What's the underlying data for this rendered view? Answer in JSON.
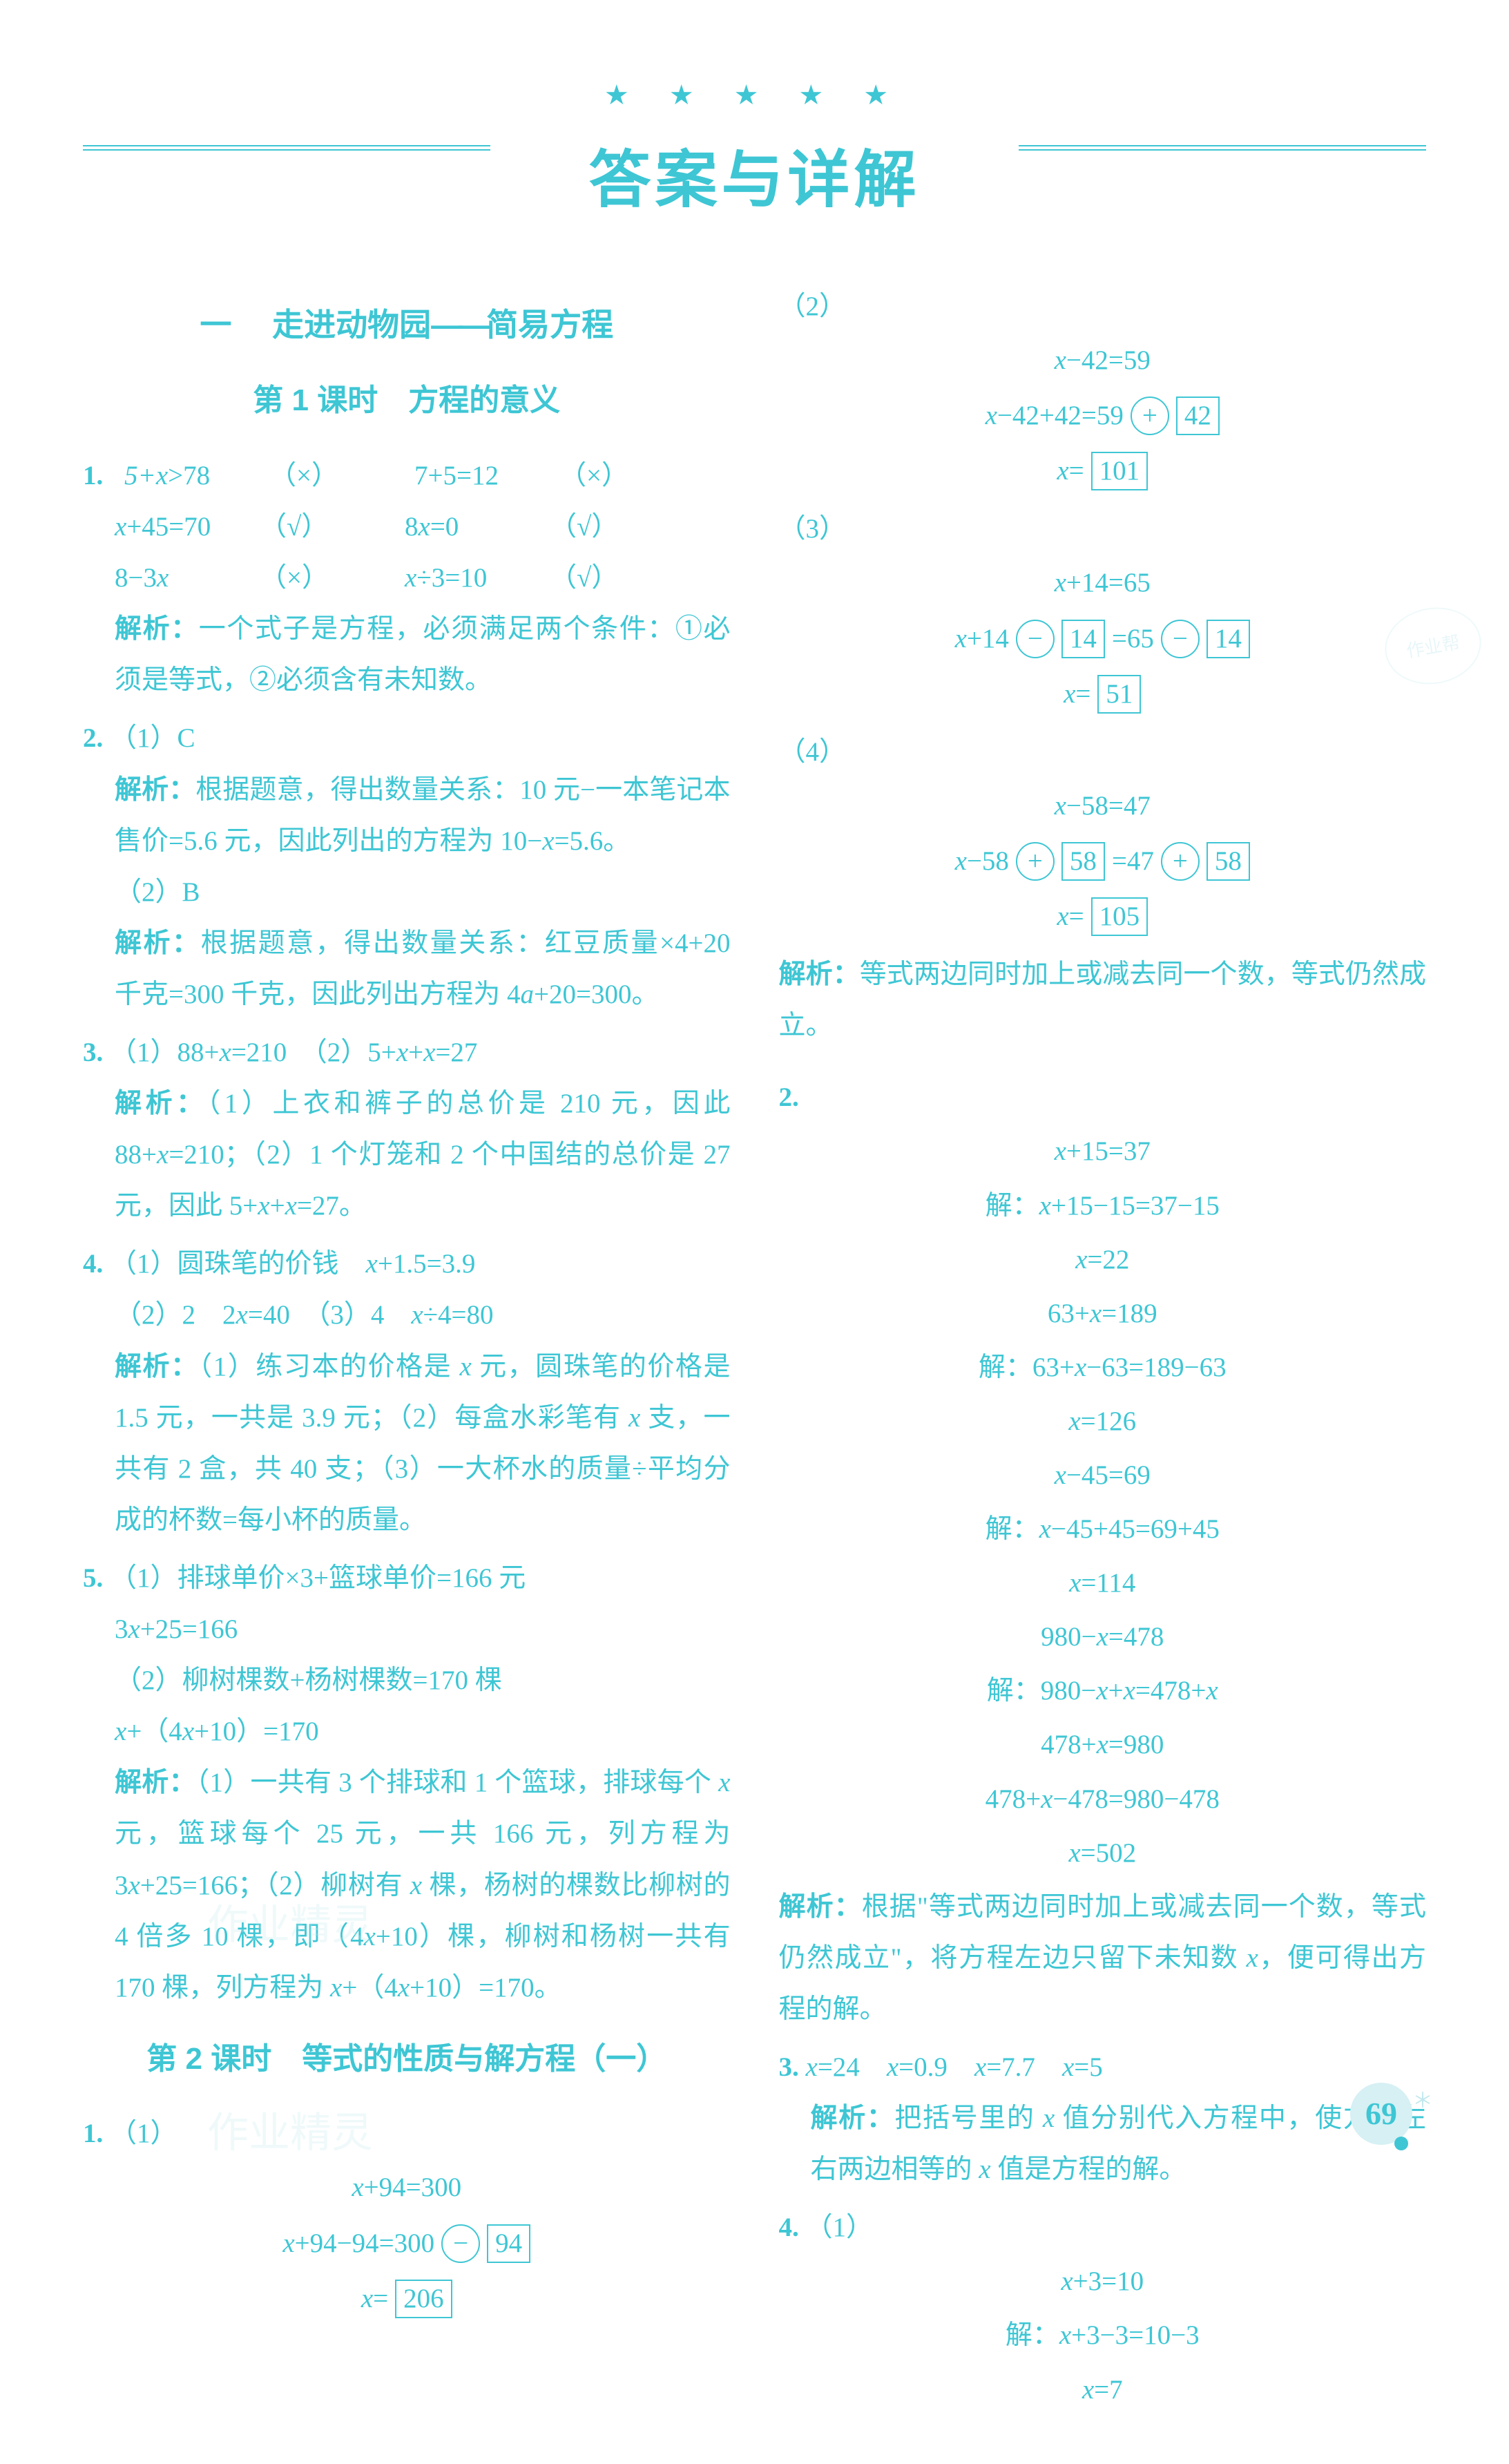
{
  "header": {
    "stars": "★ ★ ★ ★ ★",
    "title": "答案与详解"
  },
  "left": {
    "chapter": {
      "pre": "一",
      "mid": "走进动物园",
      "dash": "——",
      "post": "简易方程"
    },
    "lesson1_title": "第 1 课时　方程的意义",
    "q1": {
      "num": "1.",
      "r1": {
        "a": "5+x>78",
        "am": "（×）",
        "b": "7+5=12",
        "bm": "（×）"
      },
      "r2": {
        "a": "x+45=70",
        "am": "（√）",
        "b": "8x=0",
        "bm": "（√）"
      },
      "r3": {
        "a": "8−3x",
        "am": "（×）",
        "b": "x÷3=10",
        "bm": "（√）"
      },
      "analysis": "解析：一个式子是方程，必须满足两个条件：①必须是等式，②必须含有未知数。"
    },
    "q2": {
      "num": "2.",
      "p1": "（1）C",
      "p1_analysis": "解析：根据题意，得出数量关系：10 元−一本笔记本售价=5.6 元，因此列出的方程为 10−x=5.6。",
      "p2": "（2）B",
      "p2_analysis": "解析：根据题意，得出数量关系：红豆质量×4+20 千克=300 千克，因此列出方程为 4a+20=300。"
    },
    "q3": {
      "num": "3.",
      "line": "（1）88+x=210　（2）5+x+x=27",
      "analysis": "解析：（1）上衣和裤子的总价是 210 元，因此 88+x=210；（2）1 个灯笼和 2 个中国结的总价是 27 元，因此 5+x+x=27。"
    },
    "q4": {
      "num": "4.",
      "l1": "（1）圆珠笔的价钱　x+1.5=3.9",
      "l2": "（2）2　2x=40　（3）4　x÷4=80",
      "analysis": "解析：（1）练习本的价格是 x 元，圆珠笔的价格是 1.5 元，一共是 3.9 元；（2）每盒水彩笔有 x 支，一共有 2 盒，共 40 支；（3）一大杯水的质量÷平均分成的杯数=每小杯的质量。"
    },
    "q5": {
      "num": "5.",
      "l1": "（1）排球单价×3+篮球单价=166 元",
      "l2": "3x+25=166",
      "l3": "（2）柳树棵数+杨树棵数=170 棵",
      "l4": "x+（4x+10）=170",
      "analysis": "解析：（1）一共有 3 个排球和 1 个篮球，排球每个 x 元，篮球每个 25 元，一共 166 元，列方程为 3x+25=166；（2）柳树有 x 棵，杨树的棵数比柳树的 4 倍多 10 棵，即（4x+10）棵，柳树和杨树一共有 170 棵，列方程为 x+（4x+10）=170。"
    },
    "lesson2_title": "第 2 课时　等式的性质与解方程（一）",
    "l2q1": {
      "num": "1.",
      "part": "（1）",
      "eq1": "x+94=300",
      "eq2_left": "x+94−94=300",
      "eq2_op": "−",
      "eq2_box": "94",
      "eq3_left": "x=",
      "eq3_box": "206"
    }
  },
  "right": {
    "p2": {
      "label": "（2）",
      "eq1": "x−42=59",
      "eq2_left": "x−42+42=59",
      "eq2_op": "+",
      "eq2_box": "42",
      "eq3_left": "x=",
      "eq3_box": "101"
    },
    "p3": {
      "label": "（3）",
      "eq1": "x+14=65",
      "eq2_l": "x+14",
      "eq2_op1": "−",
      "eq2_b1": "14",
      "eq2_mid": "=65",
      "eq2_op2": "−",
      "eq2_b2": "14",
      "eq3_left": "x=",
      "eq3_box": "51"
    },
    "p4": {
      "label": "（4）",
      "eq1": "x−58=47",
      "eq2_l": "x−58",
      "eq2_op1": "+",
      "eq2_b1": "58",
      "eq2_mid": "=47",
      "eq2_op2": "+",
      "eq2_b2": "58",
      "eq3_left": "x=",
      "eq3_box": "105"
    },
    "analysis1": "解析：等式两边同时加上或减去同一个数，等式仍然成立。",
    "q2": {
      "num": "2.",
      "lines": [
        "x+15=37",
        "解：x+15−15=37−15",
        "x=22",
        "63+x=189",
        "解：63+x−63=189−63",
        "x=126",
        "x−45=69",
        "解：x−45+45=69+45",
        "x=114",
        "980−x=478",
        "解：980−x+x=478+x",
        "478+x=980",
        "478+x−478=980−478",
        "x=502"
      ],
      "analysis": "解析：根据\"等式两边同时加上或减去同一个数，等式仍然成立\"，将方程左边只留下未知数 x，便可得出方程的解。"
    },
    "q3": {
      "num": "3.",
      "line": "x=24　x=0.9　x=7.7　x=5",
      "analysis": "解析：把括号里的 x 值分别代入方程中，使方程左右两边相等的 x 值是方程的解。"
    },
    "q4": {
      "num": "4.",
      "part": "（1）",
      "lines": [
        "x+3=10",
        "解：x+3−3=10−3",
        "x=7"
      ]
    }
  },
  "page_number": "69",
  "watermark": "作业精灵",
  "stamp": "作业帮"
}
